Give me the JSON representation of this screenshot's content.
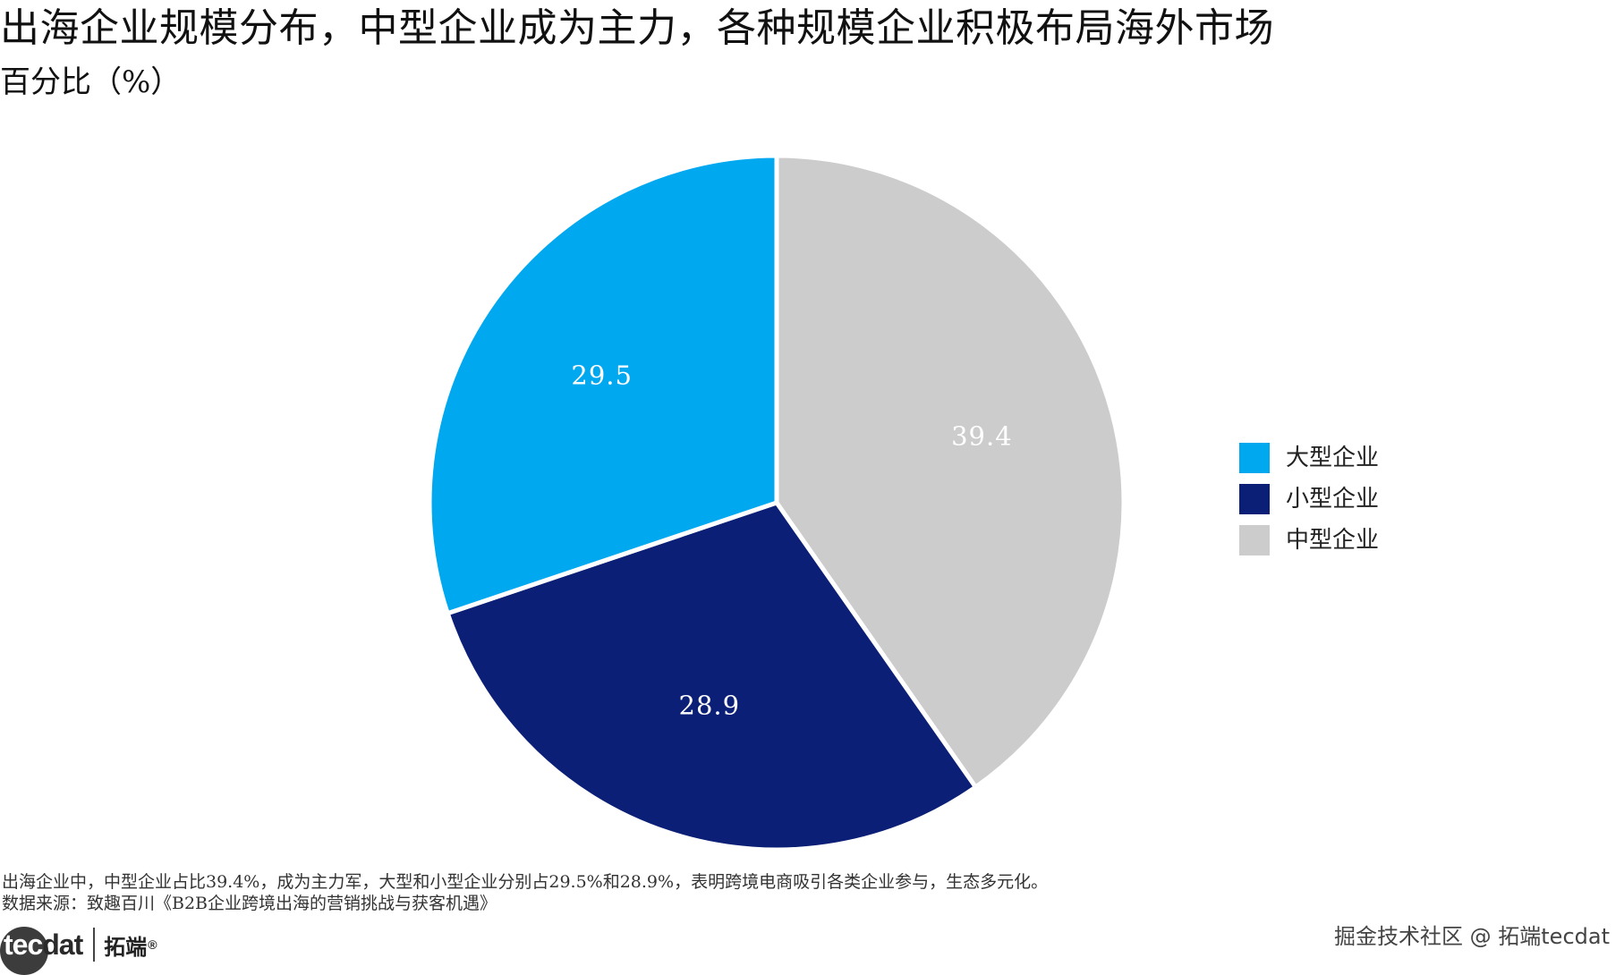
{
  "title": "出海企业规模分布，中型企业成为主力，各种规模企业积极布局海外市场",
  "subtitle": "百分比（%）",
  "chart_data": {
    "type": "pie",
    "title": "出海企业规模分布，中型企业成为主力，各种规模企业积极布局海外市场",
    "subtitle": "百分比（%）",
    "slices": [
      {
        "label": "中型企业",
        "value": 39.4,
        "display": "39.4",
        "color": "#cccccc"
      },
      {
        "label": "小型企业",
        "value": 28.9,
        "display": "28.9",
        "color": "#0a1f75"
      },
      {
        "label": "大型企业",
        "value": 29.5,
        "display": "29.5",
        "color": "#00a8f0"
      }
    ],
    "start_angle_deg": 0,
    "direction": "clockwise",
    "legend_position": "right",
    "legend_order": [
      "大型企业",
      "小型企业",
      "中型企业"
    ]
  },
  "legend": {
    "items": [
      {
        "label": "大型企业",
        "color": "#00a8f0"
      },
      {
        "label": "小型企业",
        "color": "#0a1f75"
      },
      {
        "label": "中型企业",
        "color": "#cccccc"
      }
    ]
  },
  "note": "出海企业中，中型企业占比39.4%，成为主力军，大型和小型企业分别占29.5%和28.9%，表明跨境电商吸引各类企业参与，生态多元化。",
  "source": "数据来源：致趣百川《B2B企业跨境出海的营销挑战与获客机遇》",
  "brand": {
    "logo_text_light": "tec",
    "logo_text_dark": "dat",
    "name_cn": "拓端",
    "reg": "®"
  },
  "watermark": "掘金技术社区 @ 拓端tecdat"
}
